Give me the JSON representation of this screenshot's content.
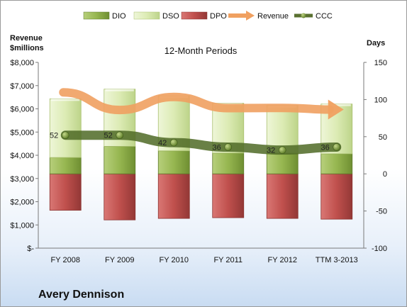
{
  "company": "Avery Dennison",
  "chart_data": {
    "type": "bar",
    "title": "12-Month Periods",
    "ylabel_left": "Revenue $millions",
    "ylabel_right": "Days",
    "categories": [
      "FY 2008",
      "FY 2009",
      "FY 2010",
      "FY 2011",
      "FY 2012",
      "TTM 3-2013"
    ],
    "left_axis": {
      "range": [
        0,
        8000
      ],
      "ticks": [
        0,
        1000,
        2000,
        3000,
        4000,
        5000,
        6000,
        7000,
        8000
      ],
      "tick_labels": [
        "$-",
        "$1,000",
        "$2,000",
        "$3,000",
        "$4,000",
        "$5,000",
        "$6,000",
        "$7,000",
        "$8,000"
      ]
    },
    "right_axis": {
      "range": [
        -100,
        150
      ],
      "ticks": [
        -100,
        -50,
        0,
        50,
        100,
        150
      ],
      "tick_labels": [
        "-100",
        "-50",
        "0",
        "50",
        "100",
        "150"
      ]
    },
    "legend_position": "top",
    "gridlines": false,
    "series": [
      {
        "name": "DIO",
        "type": "stacked-bar",
        "axis": "right",
        "color": "#8fb04a",
        "values": [
          22,
          37,
          31,
          28,
          28,
          27
        ]
      },
      {
        "name": "DSO",
        "type": "stacked-bar",
        "axis": "right",
        "color": "#d9ebb0",
        "values": [
          79,
          77,
          74,
          67,
          64,
          67
        ]
      },
      {
        "name": "DPO",
        "type": "bar-below-zero",
        "axis": "right",
        "color": "#c0504d",
        "values": [
          49,
          62,
          60,
          59,
          60,
          61
        ]
      },
      {
        "name": "Revenue",
        "type": "line-arrow",
        "axis": "left",
        "color": "#f0a060",
        "values": [
          6710,
          5950,
          6510,
          6030,
          6040,
          5970
        ]
      },
      {
        "name": "CCC",
        "type": "line",
        "axis": "right",
        "color": "#5a7030",
        "values": [
          52,
          52,
          42,
          36,
          32,
          36
        ]
      }
    ],
    "data_labels": [
      "52",
      "52",
      "42",
      "36",
      "32",
      "36"
    ]
  }
}
